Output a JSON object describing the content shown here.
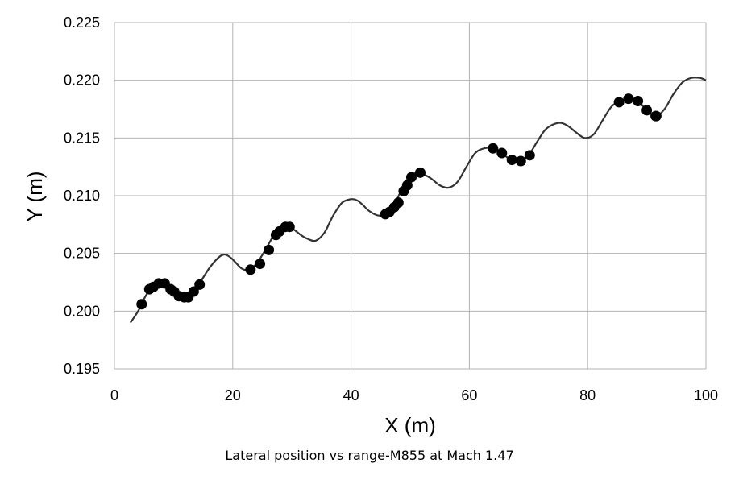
{
  "caption": "Lateral position vs range-M855 at Mach 1.47",
  "chart_data": {
    "type": "scatter",
    "title": "",
    "xlabel": "X (m)",
    "ylabel": "Y (m)",
    "xlim": [
      0,
      100
    ],
    "ylim": [
      0.195,
      0.225
    ],
    "x_ticks": [
      0,
      20,
      40,
      60,
      80,
      100
    ],
    "y_ticks": [
      0.195,
      0.2,
      0.205,
      0.21,
      0.215,
      0.22,
      0.225
    ],
    "x_tick_labels": [
      "0",
      "20",
      "40",
      "60",
      "80",
      "100"
    ],
    "y_tick_labels": [
      "0.195",
      "0.200",
      "0.205",
      "0.210",
      "0.215",
      "0.220",
      "0.225"
    ],
    "grid": true,
    "line_color": "#333333",
    "marker_color": "#000000",
    "series": [
      {
        "type": "line",
        "x": [
          2.7,
          4.0,
          5.5,
          7.0,
          8.5,
          10.0,
          11.5,
          12.5,
          13.5,
          14.5,
          16.0,
          17.5,
          18.5,
          19.5,
          20.5,
          21.5,
          22.5,
          24.0,
          25.5,
          27.0,
          28.5,
          29.5,
          30.5,
          31.5,
          32.5,
          34.0,
          35.5,
          37.0,
          38.5,
          40.0,
          41.0,
          42.0,
          43.0,
          44.5,
          46.0,
          47.5,
          49.0,
          50.5,
          52.0,
          53.5,
          55.0,
          56.5,
          58.0,
          59.5,
          61.0,
          62.5,
          64.0,
          65.5,
          67.0,
          68.5,
          70.0,
          71.5,
          73.0,
          75.0,
          76.5,
          78.0,
          79.5,
          81.0,
          82.5,
          84.0,
          85.5,
          87.0,
          88.5,
          90.0,
          91.5,
          93.0,
          94.5,
          96.0,
          97.5,
          99.0,
          100.0
        ],
        "y": [
          0.199,
          0.2,
          0.2015,
          0.2022,
          0.2022,
          0.2017,
          0.2012,
          0.2013,
          0.2018,
          0.2025,
          0.2037,
          0.2046,
          0.2049,
          0.2047,
          0.2042,
          0.2037,
          0.2036,
          0.2041,
          0.2053,
          0.2066,
          0.2073,
          0.2073,
          0.207,
          0.2066,
          0.2063,
          0.2061,
          0.2068,
          0.2083,
          0.2094,
          0.2097,
          0.2096,
          0.2092,
          0.2087,
          0.2083,
          0.2084,
          0.2094,
          0.211,
          0.2119,
          0.2119,
          0.2115,
          0.2109,
          0.2107,
          0.2112,
          0.2125,
          0.2137,
          0.2141,
          0.2141,
          0.2137,
          0.2131,
          0.213,
          0.2135,
          0.2147,
          0.2158,
          0.2163,
          0.2161,
          0.2155,
          0.215,
          0.2153,
          0.2165,
          0.2177,
          0.2182,
          0.2184,
          0.2182,
          0.2174,
          0.2169,
          0.2175,
          0.2188,
          0.2198,
          0.2202,
          0.2202,
          0.22
        ]
      },
      {
        "type": "scatter",
        "x": [
          4.6,
          5.9,
          6.6,
          7.5,
          8.5,
          9.5,
          10.1,
          10.9,
          11.8,
          12.5,
          13.4,
          14.4,
          23.0,
          24.6,
          26.1,
          27.3,
          27.9,
          28.9,
          29.6,
          45.8,
          46.5,
          47.3,
          48.0,
          48.9,
          49.5,
          50.2,
          51.7,
          64.0,
          65.5,
          67.2,
          68.7,
          70.2,
          85.3,
          86.9,
          88.5,
          90.0,
          91.5,
          91.6
        ],
        "y": [
          0.2006,
          0.2019,
          0.2021,
          0.2024,
          0.2024,
          0.2019,
          0.2017,
          0.2013,
          0.2012,
          0.2012,
          0.2017,
          0.2023,
          0.2036,
          0.2041,
          0.2053,
          0.2066,
          0.2069,
          0.2073,
          0.2073,
          0.2084,
          0.2086,
          0.209,
          0.2094,
          0.2104,
          0.2109,
          0.2116,
          0.212,
          0.2141,
          0.2137,
          0.2131,
          0.213,
          0.2135,
          0.2181,
          0.2184,
          0.2182,
          0.2174,
          0.2169,
          0.2169
        ]
      }
    ]
  }
}
